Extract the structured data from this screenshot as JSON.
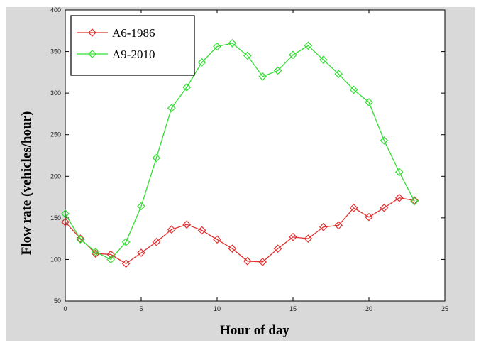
{
  "chart_data": {
    "type": "line",
    "xlabel": "Hour of day",
    "ylabel": "Flow rate (vehicles/hour)",
    "xlim": [
      0,
      25
    ],
    "ylim": [
      50,
      400
    ],
    "xticks": [
      0,
      5,
      10,
      15,
      20,
      25
    ],
    "yticks": [
      50,
      100,
      150,
      200,
      250,
      300,
      350,
      400
    ],
    "grid": false,
    "legend": "top-left",
    "x": [
      0,
      1,
      2,
      3,
      4,
      5,
      6,
      7,
      8,
      9,
      10,
      11,
      12,
      13,
      14,
      15,
      16,
      17,
      18,
      19,
      20,
      21,
      22,
      23
    ],
    "series": [
      {
        "name": "A6-1986",
        "color": "#e03030",
        "marker": "diamond",
        "values": [
          145,
          125,
          107,
          106,
          95,
          108,
          121,
          136,
          142,
          135,
          124,
          113,
          98,
          97,
          113,
          127,
          125,
          139,
          141,
          162,
          151,
          162,
          174,
          171
        ]
      },
      {
        "name": "A9-2010",
        "color": "#33dd33",
        "marker": "diamond",
        "values": [
          155,
          124,
          109,
          100,
          121,
          164,
          222,
          282,
          307,
          337,
          356,
          360,
          345,
          320,
          327,
          346,
          357,
          340,
          323,
          304,
          289,
          243,
          205,
          170
        ]
      }
    ]
  }
}
